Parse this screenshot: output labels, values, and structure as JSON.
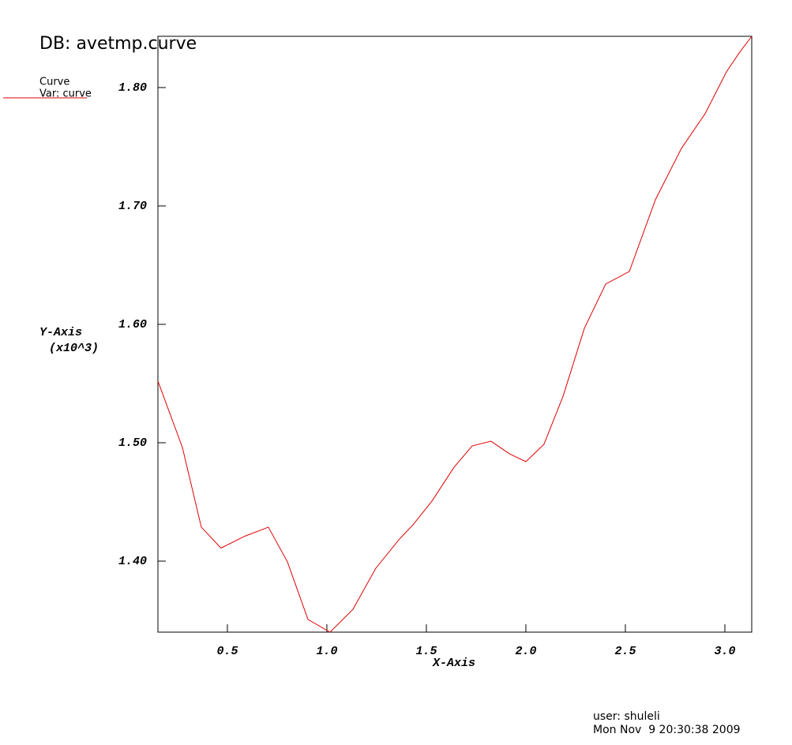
{
  "chart_data": {
    "type": "line",
    "title": "DB: avetmp.curve",
    "legend_title": "Curve",
    "legend_subtitle": "Var: curve",
    "x_label": "X-Axis",
    "y_label": "Y-Axis",
    "y_unit_label": "(x10^3)",
    "user": "user: shuleli",
    "timestamp": "Mon Nov  9 20:30:38 2009",
    "xlim": [
      0.151,
      3.135
    ],
    "ylim": [
      1.34,
      1.8433
    ],
    "xticks": [
      0.5,
      {
        "value": 1.0,
        "label": "1.0"
      },
      1.5,
      {
        "value": 2.0,
        "label": "2.0"
      },
      2.5,
      {
        "value": 3.0,
        "label": "3.0"
      }
    ],
    "yticks": [
      {
        "value": 1.4,
        "label": "1.40"
      },
      {
        "value": 1.5,
        "label": "1.50"
      },
      {
        "value": 1.6,
        "label": "1.60"
      },
      {
        "value": 1.7,
        "label": "1.70"
      },
      {
        "value": 1.8,
        "label": "1.80"
      }
    ],
    "series": [
      {
        "color": "#e00000",
        "x": [
          0.151,
          0.274,
          0.369,
          0.468,
          0.587,
          0.706,
          0.802,
          0.905,
          1.016,
          1.131,
          1.246,
          1.365,
          1.433,
          1.528,
          1.639,
          1.73,
          1.825,
          1.917,
          2.0,
          2.091,
          2.187,
          2.294,
          2.401,
          2.52,
          2.651,
          2.782,
          2.901,
          3.008,
          3.075,
          3.135
        ],
        "values": [
          1.552,
          1.496,
          1.4287,
          1.411,
          1.421,
          1.4287,
          1.3993,
          1.3507,
          1.34,
          1.3593,
          1.394,
          1.4187,
          1.4307,
          1.4507,
          1.4793,
          1.4973,
          1.5013,
          1.4907,
          1.484,
          1.4987,
          1.5393,
          1.5967,
          1.634,
          1.6447,
          1.7053,
          1.7487,
          1.778,
          1.8133,
          1.83,
          1.8433
        ]
      }
    ]
  }
}
